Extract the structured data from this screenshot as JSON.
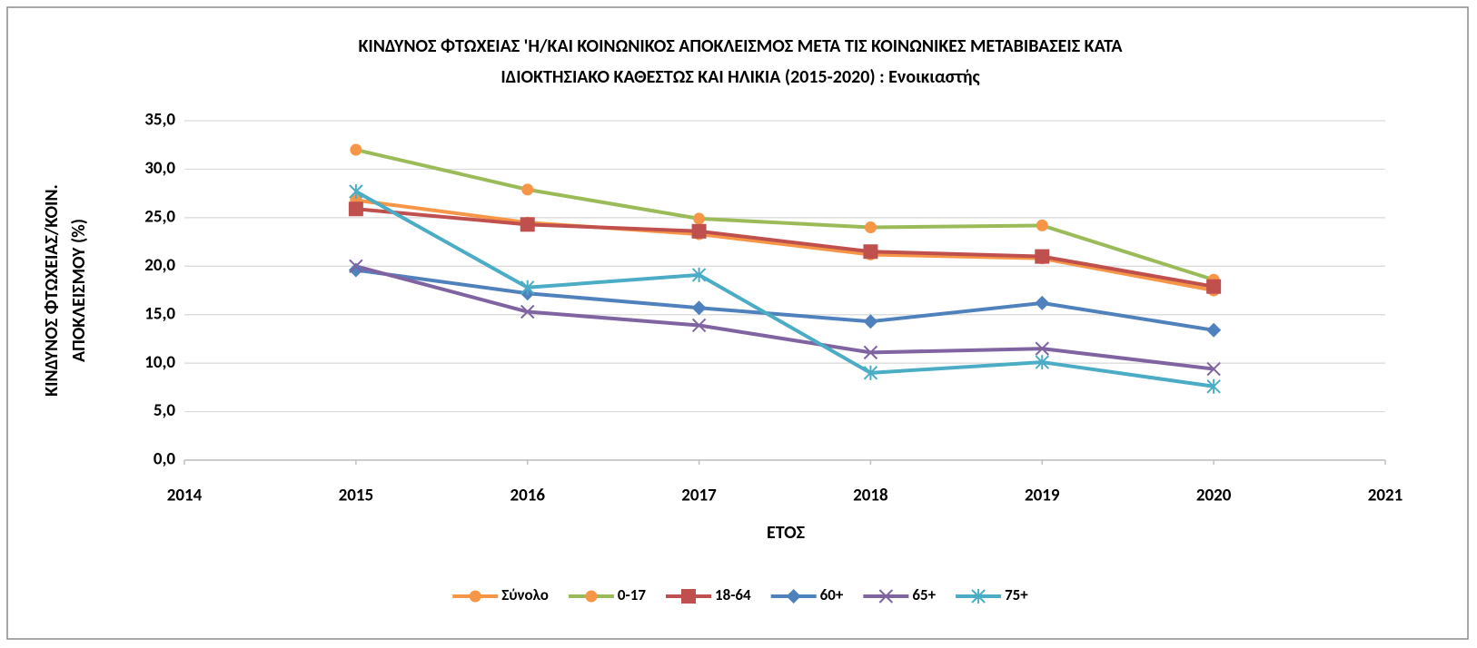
{
  "chart_data": {
    "type": "line",
    "title": [
      "ΚΙΝΔΥΝΟΣ ΦΤΩΧΕΙΑΣ 'Η/ΚΑΙ ΚΟΙΝΩΝΙΚΟΣ ΑΠΟΚΛΕΙΣΜΟΣ ΜΕΤΑ ΤΙΣ ΚΟΙΝΩΝΙΚΕΣ ΜΕΤΑΒΙΒΑΣΕΙΣ ΚΑΤΑ",
      "ΙΔΙΟΚΤΗΣΙΑΚΟ ΚΑΘΕΣΤΩΣ ΚΑΙ ΗΛΙΚΙΑ (2015-2020) : Ενοικιαστής"
    ],
    "x_label": "ΕΤΟΣ",
    "y_label": [
      "ΚΙΝΔΥΝΟΣ ΦΤΩΧΕΙΑΣ/ΚΟΙΝ.",
      "ΑΠΟΚΛΕΙΣΜΟΥ (%)"
    ],
    "x": [
      2015,
      2016,
      2017,
      2018,
      2019,
      2020
    ],
    "series": [
      {
        "name": "Σύνολο",
        "color": "#f79646",
        "marker": "circle",
        "marker_color": "#f79646",
        "values": [
          26.8,
          24.5,
          23.3,
          21.2,
          20.8,
          17.5
        ]
      },
      {
        "name": "0-17",
        "color": "#9bbb59",
        "marker": "circle",
        "marker_color": "#f79646",
        "values": [
          32.0,
          27.9,
          24.9,
          24.0,
          24.2,
          18.6
        ]
      },
      {
        "name": "18-64",
        "color": "#c0504d",
        "marker": "square",
        "marker_color": "#c0504d",
        "values": [
          25.9,
          24.3,
          23.6,
          21.5,
          21.0,
          17.9
        ]
      },
      {
        "name": "60+",
        "color": "#4f81bd",
        "marker": "diamond",
        "marker_color": "#4f81bd",
        "values": [
          19.6,
          17.2,
          15.7,
          14.3,
          16.2,
          13.4
        ]
      },
      {
        "name": "65+",
        "color": "#8064a2",
        "marker": "x",
        "marker_color": "#8064a2",
        "values": [
          20.0,
          15.3,
          13.9,
          11.1,
          11.5,
          9.4
        ]
      },
      {
        "name": "75+",
        "color": "#4bacc6",
        "marker": "star",
        "marker_color": "#4bacc6",
        "values": [
          27.7,
          17.8,
          19.1,
          9.0,
          10.1,
          7.6
        ]
      }
    ],
    "xlim": [
      2014,
      2021
    ],
    "xticks": [
      2014,
      2015,
      2016,
      2017,
      2018,
      2019,
      2020,
      2021
    ],
    "ylim": [
      0,
      35
    ],
    "yticks": [
      {
        "value": 0,
        "label": "0,0"
      },
      {
        "value": 5,
        "label": "5,0"
      },
      {
        "value": 10,
        "label": "10,0"
      },
      {
        "value": 15,
        "label": "15,0"
      },
      {
        "value": 20,
        "label": "20,0"
      },
      {
        "value": 25,
        "label": "25,0"
      },
      {
        "value": 30,
        "label": "30,0"
      },
      {
        "value": 35,
        "label": "35,0"
      }
    ],
    "grid": true,
    "legend": "bottom"
  }
}
